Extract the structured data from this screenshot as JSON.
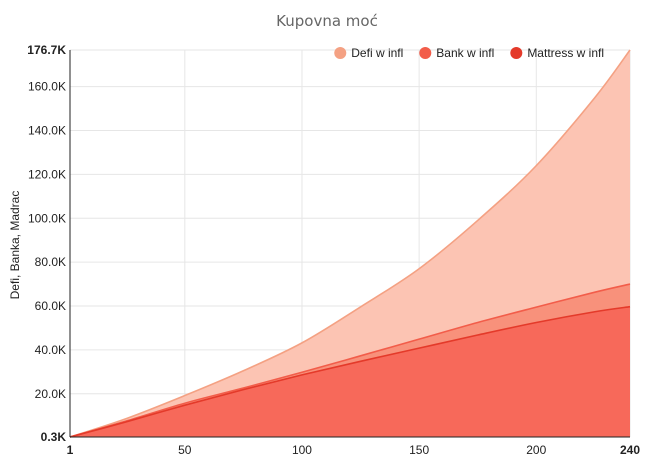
{
  "chart_data": {
    "type": "area",
    "title": "Kupovna moć",
    "ylabel": "Defi, Banka, Madrac",
    "xlabel": "",
    "xlim": [
      1,
      240
    ],
    "ylim": [
      300,
      176700
    ],
    "x_ticks": [
      "1",
      "50",
      "100",
      "150",
      "200",
      "240"
    ],
    "x_tick_values": [
      1,
      50,
      100,
      150,
      200,
      240
    ],
    "y_ticks": [
      "0.3K",
      "20.0K",
      "40.0K",
      "60.0K",
      "80.0K",
      "100.0K",
      "120.0K",
      "140.0K",
      "160.0K",
      "176.7K"
    ],
    "y_tick_values": [
      300,
      20000,
      40000,
      60000,
      80000,
      100000,
      120000,
      140000,
      160000,
      176700
    ],
    "grid": true,
    "legend_position": "top-right",
    "x": [
      1,
      25,
      50,
      75,
      100,
      125,
      150,
      175,
      200,
      225,
      240
    ],
    "series": [
      {
        "name": "Defi w infl",
        "color": "#f4a183",
        "fill": "#fcc4b3",
        "values": [
          300,
          8700,
          19200,
          30500,
          43200,
          59600,
          77000,
          99000,
          124000,
          155000,
          176700
        ]
      },
      {
        "name": "Bank w infl",
        "color": "#f25d4a",
        "fill": "#f8917b",
        "values": [
          300,
          7600,
          15700,
          22600,
          29800,
          37300,
          44900,
          52500,
          59500,
          66300,
          70000
        ]
      },
      {
        "name": "Mattress w infl",
        "color": "#e43a2a",
        "fill": "#f7695a",
        "values": [
          300,
          7200,
          14800,
          21900,
          28600,
          34800,
          40800,
          46800,
          52500,
          57400,
          59700
        ]
      }
    ]
  }
}
